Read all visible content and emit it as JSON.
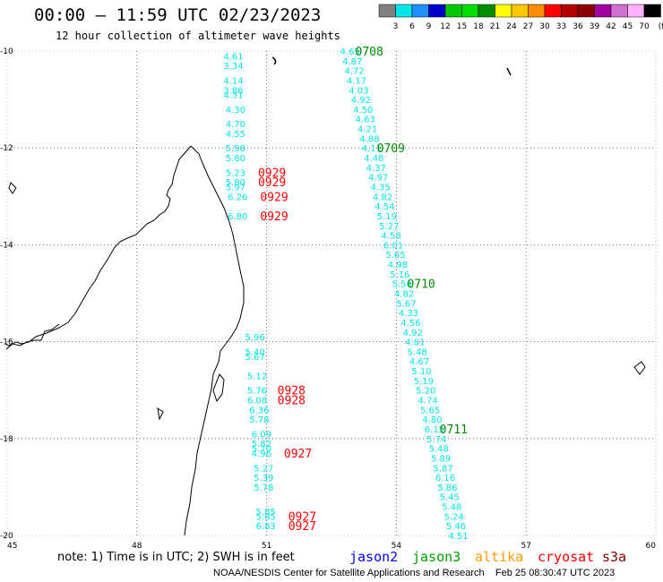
{
  "header": {
    "title": "00:00 – 11:59 UTC 02/23/2023",
    "subtitle": "12 hour collection of altimeter wave heights"
  },
  "colorbar": {
    "labels": [
      "3",
      "6",
      "9",
      "12",
      "15",
      "18",
      "21",
      "24",
      "27",
      "30",
      "33",
      "36",
      "39",
      "42",
      "45",
      "70"
    ],
    "unit": "(ft)",
    "colors": [
      "#808080",
      "#00e6e6",
      "#1e90ff",
      "#0000cd",
      "#00c800",
      "#00dd00",
      "#008c00",
      "#ffff00",
      "#ffc800",
      "#ff8c00",
      "#ff0000",
      "#b40000",
      "#8b0000",
      "#a000a0",
      "#d070d0",
      "#ffb0ff",
      "#000000"
    ]
  },
  "map": {
    "lat_labels": [
      "-10",
      "-12",
      "-14",
      "-16",
      "-18",
      "-20"
    ],
    "lon_labels": [
      "45",
      "48",
      "51",
      "54",
      "57",
      "60"
    ],
    "lon_range": [
      45,
      60
    ],
    "lat_range": [
      -20,
      -10
    ]
  },
  "tracks": [
    {
      "satellite": "jason3",
      "color": "#00e6e6",
      "time_color": "#008c00",
      "points": [
        {
          "lat": -10.0,
          "lon": 52.7,
          "v": "4.65"
        },
        {
          "lat": -10.2,
          "lon": 52.75,
          "v": "4.87"
        },
        {
          "lat": -10.4,
          "lon": 52.8,
          "v": "4.72"
        },
        {
          "lat": -10.6,
          "lon": 52.85,
          "v": "4.17"
        },
        {
          "lat": -10.8,
          "lon": 52.9,
          "v": "4.03"
        },
        {
          "lat": -11.0,
          "lon": 52.95,
          "v": "4.92"
        },
        {
          "lat": -11.2,
          "lon": 53.0,
          "v": "4.50"
        },
        {
          "lat": -11.4,
          "lon": 53.05,
          "v": "4.63"
        },
        {
          "lat": -11.6,
          "lon": 53.1,
          "v": "4.21"
        },
        {
          "lat": -11.8,
          "lon": 53.15,
          "v": "4.88"
        },
        {
          "lat": -12.0,
          "lon": 53.2,
          "v": "4.11"
        },
        {
          "lat": -12.2,
          "lon": 53.25,
          "v": "4.48"
        },
        {
          "lat": -12.4,
          "lon": 53.3,
          "v": "4.37"
        },
        {
          "lat": -12.6,
          "lon": 53.35,
          "v": "4.97"
        },
        {
          "lat": -12.8,
          "lon": 53.4,
          "v": "4.35"
        },
        {
          "lat": -13.0,
          "lon": 53.45,
          "v": "4.82"
        },
        {
          "lat": -13.2,
          "lon": 53.5,
          "v": "4.54"
        },
        {
          "lat": -13.4,
          "lon": 53.55,
          "v": "5.19"
        },
        {
          "lat": -13.6,
          "lon": 53.6,
          "v": "5.27"
        },
        {
          "lat": -13.8,
          "lon": 53.65,
          "v": "4.58"
        },
        {
          "lat": -14.0,
          "lon": 53.7,
          "v": "6.01"
        },
        {
          "lat": -14.2,
          "lon": 53.75,
          "v": "5.65"
        },
        {
          "lat": -14.4,
          "lon": 53.8,
          "v": "4.98"
        },
        {
          "lat": -14.6,
          "lon": 53.85,
          "v": "5.16"
        },
        {
          "lat": -14.8,
          "lon": 53.9,
          "v": "5.56"
        },
        {
          "lat": -15.0,
          "lon": 53.95,
          "v": "4.82"
        },
        {
          "lat": -15.2,
          "lon": 54.0,
          "v": "5.67"
        },
        {
          "lat": -15.4,
          "lon": 54.05,
          "v": "4.33"
        },
        {
          "lat": -15.6,
          "lon": 54.1,
          "v": "4.56"
        },
        {
          "lat": -15.8,
          "lon": 54.15,
          "v": "4.92"
        },
        {
          "lat": -16.0,
          "lon": 54.2,
          "v": "4.81"
        },
        {
          "lat": -16.2,
          "lon": 54.25,
          "v": "5.48"
        },
        {
          "lat": -16.4,
          "lon": 54.3,
          "v": "4.67"
        },
        {
          "lat": -16.6,
          "lon": 54.35,
          "v": "5.10"
        },
        {
          "lat": -16.8,
          "lon": 54.4,
          "v": "5.19"
        },
        {
          "lat": -17.0,
          "lon": 54.45,
          "v": "5.20"
        },
        {
          "lat": -17.2,
          "lon": 54.5,
          "v": "4.74"
        },
        {
          "lat": -17.4,
          "lon": 54.55,
          "v": "5.65"
        },
        {
          "lat": -17.6,
          "lon": 54.6,
          "v": "4.80"
        },
        {
          "lat": -17.8,
          "lon": 54.65,
          "v": "6.15"
        },
        {
          "lat": -18.0,
          "lon": 54.7,
          "v": "5.74"
        },
        {
          "lat": -18.2,
          "lon": 54.75,
          "v": "5.48"
        },
        {
          "lat": -18.4,
          "lon": 54.8,
          "v": "5.89"
        },
        {
          "lat": -18.6,
          "lon": 54.85,
          "v": "5.87"
        },
        {
          "lat": -18.8,
          "lon": 54.9,
          "v": "6.16"
        },
        {
          "lat": -19.0,
          "lon": 54.95,
          "v": "5.86"
        },
        {
          "lat": -19.2,
          "lon": 55.0,
          "v": "5.45"
        },
        {
          "lat": -19.4,
          "lon": 55.05,
          "v": "5.48"
        },
        {
          "lat": -19.6,
          "lon": 55.1,
          "v": "5.24"
        },
        {
          "lat": -19.8,
          "lon": 55.15,
          "v": "5.46"
        },
        {
          "lat": -20.0,
          "lon": 55.2,
          "v": "4.51"
        }
      ],
      "times": [
        {
          "lat": -10.0,
          "lon": 53.05,
          "t": "0708"
        },
        {
          "lat": -12.0,
          "lon": 53.55,
          "t": "0709"
        },
        {
          "lat": -14.8,
          "lon": 54.25,
          "t": "0710"
        },
        {
          "lat": -17.8,
          "lon": 55.0,
          "t": "0711"
        }
      ]
    },
    {
      "satellite": "cryosat",
      "color": "#00e6e6",
      "time_color": "#ff0000",
      "points": [
        {
          "lat": -10.1,
          "lon": 50.0,
          "v": "4.61"
        },
        {
          "lat": -10.3,
          "lon": 50.0,
          "v": "3.34"
        },
        {
          "lat": -10.6,
          "lon": 50.0,
          "v": "4.14"
        },
        {
          "lat": -10.8,
          "lon": 50.0,
          "v": "3.86"
        },
        {
          "lat": -10.9,
          "lon": 50.0,
          "v": "4.31"
        },
        {
          "lat": -11.2,
          "lon": 50.05,
          "v": "4.30"
        },
        {
          "lat": -11.5,
          "lon": 50.05,
          "v": "4.70"
        },
        {
          "lat": -11.7,
          "lon": 50.05,
          "v": "4.55"
        },
        {
          "lat": -12.0,
          "lon": 50.05,
          "v": "5.98"
        },
        {
          "lat": -12.2,
          "lon": 50.05,
          "v": "5.80"
        },
        {
          "lat": -12.5,
          "lon": 50.05,
          "v": "5.23"
        },
        {
          "lat": -12.7,
          "lon": 50.05,
          "v": "5.80"
        },
        {
          "lat": -12.8,
          "lon": 50.05,
          "v": "5.97"
        },
        {
          "lat": -13.0,
          "lon": 50.1,
          "v": "6.26"
        },
        {
          "lat": -13.4,
          "lon": 50.1,
          "v": "6.80"
        },
        {
          "lat": -15.9,
          "lon": 50.5,
          "v": "5.96"
        },
        {
          "lat": -16.2,
          "lon": 50.5,
          "v": "5.40"
        },
        {
          "lat": -16.3,
          "lon": 50.5,
          "v": "5.67"
        },
        {
          "lat": -16.7,
          "lon": 50.55,
          "v": "5.12"
        },
        {
          "lat": -17.0,
          "lon": 50.55,
          "v": "5.76"
        },
        {
          "lat": -17.2,
          "lon": 50.55,
          "v": "6.08"
        },
        {
          "lat": -17.4,
          "lon": 50.6,
          "v": "6.36"
        },
        {
          "lat": -17.6,
          "lon": 50.6,
          "v": "5.78"
        },
        {
          "lat": -17.9,
          "lon": 50.65,
          "v": "6.09"
        },
        {
          "lat": -18.1,
          "lon": 50.65,
          "v": "5.82"
        },
        {
          "lat": -18.2,
          "lon": 50.65,
          "v": "5.70"
        },
        {
          "lat": -18.3,
          "lon": 50.65,
          "v": "4.96"
        },
        {
          "lat": -18.6,
          "lon": 50.7,
          "v": "5.27"
        },
        {
          "lat": -18.8,
          "lon": 50.7,
          "v": "5.39"
        },
        {
          "lat": -19.0,
          "lon": 50.7,
          "v": "5.78"
        },
        {
          "lat": -19.5,
          "lon": 50.75,
          "v": "5.85"
        },
        {
          "lat": -19.6,
          "lon": 50.75,
          "v": "5.85"
        },
        {
          "lat": -19.8,
          "lon": 50.75,
          "v": "6.83"
        }
      ],
      "times": [
        {
          "lat": -12.5,
          "lon": 50.8,
          "t": "0929"
        },
        {
          "lat": -12.7,
          "lon": 50.8,
          "t": "0929"
        },
        {
          "lat": -13.0,
          "lon": 50.85,
          "t": "0929"
        },
        {
          "lat": -13.4,
          "lon": 50.85,
          "t": "0929"
        },
        {
          "lat": -17.0,
          "lon": 51.25,
          "t": "0928"
        },
        {
          "lat": -17.2,
          "lon": 51.25,
          "t": "0928"
        },
        {
          "lat": -18.3,
          "lon": 51.4,
          "t": "0927"
        },
        {
          "lat": -19.6,
          "lon": 51.5,
          "t": "0927"
        },
        {
          "lat": -19.8,
          "lon": 51.5,
          "t": "0927"
        }
      ]
    }
  ],
  "footer": {
    "note": "note:  1) Time is in UTC; 2) SWH is in feet",
    "legend": [
      {
        "name": "jason2",
        "color": "#0000ff"
      },
      {
        "name": "jason3",
        "color": "#00a000"
      },
      {
        "name": "altika",
        "color": "#ff9900"
      },
      {
        "name": "cryosat",
        "color": "#ff0000"
      },
      {
        "name": "s3a",
        "color": "#800000"
      }
    ],
    "credit": "NOAA/NESDIS Center for Satellite Applications and Research",
    "timestamp": "Feb 25 08:30:47 UTC 2023"
  }
}
